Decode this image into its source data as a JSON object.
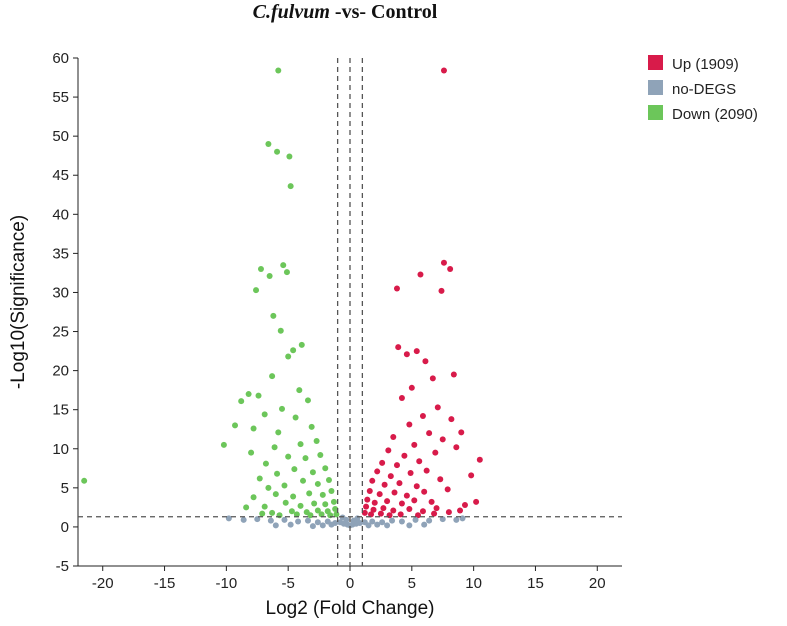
{
  "chart_data": {
    "type": "scatter",
    "title": {
      "italic": "C.fulvum",
      "rest": " -vs- Control"
    },
    "xlabel": "Log2 (Fold Change)",
    "ylabel": "-Log10(Significance)",
    "xlim": [
      -22,
      22
    ],
    "ylim": [
      -5,
      60
    ],
    "x_ticks": [
      -20,
      -15,
      -10,
      -5,
      0,
      5,
      10,
      15,
      20
    ],
    "y_ticks": [
      -5,
      0,
      5,
      10,
      15,
      20,
      25,
      30,
      35,
      40,
      45,
      50,
      55,
      60
    ],
    "threshold_lines": {
      "vertical": [
        -1,
        0,
        1
      ],
      "horizontal": [
        1.3
      ]
    },
    "legend_position": "top-right",
    "colors": {
      "up": "#d81b4a",
      "no": "#8fa3b8",
      "down": "#6cc65a",
      "guide": "#555555"
    },
    "series": [
      {
        "key": "up",
        "name": "Up (1909)",
        "points": [
          [
            7.6,
            58.4
          ],
          [
            7.6,
            33.8
          ],
          [
            8.1,
            33.0
          ],
          [
            3.8,
            30.5
          ],
          [
            7.4,
            30.2
          ],
          [
            5.7,
            32.3
          ],
          [
            4.6,
            22.1
          ],
          [
            5.4,
            22.5
          ],
          [
            6.1,
            21.2
          ],
          [
            3.9,
            23.0
          ],
          [
            8.4,
            19.5
          ],
          [
            10.5,
            8.6
          ],
          [
            9.8,
            6.6
          ],
          [
            10.2,
            3.2
          ],
          [
            9.3,
            2.8
          ],
          [
            8.9,
            2.1
          ],
          [
            7.9,
            4.8
          ],
          [
            8.6,
            10.2
          ],
          [
            9.0,
            12.1
          ],
          [
            6.7,
            19.0
          ],
          [
            5.0,
            17.8
          ],
          [
            4.2,
            16.5
          ],
          [
            7.1,
            15.3
          ],
          [
            5.9,
            14.2
          ],
          [
            4.8,
            13.1
          ],
          [
            6.4,
            12.0
          ],
          [
            3.5,
            11.5
          ],
          [
            8.2,
            13.8
          ],
          [
            7.5,
            11.2
          ],
          [
            5.2,
            10.5
          ],
          [
            3.1,
            9.8
          ],
          [
            4.4,
            9.1
          ],
          [
            6.9,
            9.5
          ],
          [
            2.6,
            8.2
          ],
          [
            3.8,
            7.9
          ],
          [
            5.6,
            8.4
          ],
          [
            2.2,
            7.1
          ],
          [
            3.3,
            6.5
          ],
          [
            4.9,
            6.9
          ],
          [
            6.2,
            7.2
          ],
          [
            1.8,
            5.9
          ],
          [
            2.8,
            5.4
          ],
          [
            4.0,
            5.6
          ],
          [
            5.4,
            5.2
          ],
          [
            7.3,
            6.1
          ],
          [
            1.6,
            4.6
          ],
          [
            2.4,
            4.2
          ],
          [
            3.6,
            4.4
          ],
          [
            4.6,
            4.0
          ],
          [
            6.0,
            4.5
          ],
          [
            1.4,
            3.5
          ],
          [
            2.0,
            3.1
          ],
          [
            3.0,
            3.3
          ],
          [
            4.2,
            3.0
          ],
          [
            5.2,
            3.4
          ],
          [
            6.6,
            3.2
          ],
          [
            1.3,
            2.6
          ],
          [
            1.9,
            2.2
          ],
          [
            2.7,
            2.4
          ],
          [
            3.5,
            2.1
          ],
          [
            4.8,
            2.3
          ],
          [
            5.9,
            2.0
          ],
          [
            7.0,
            2.4
          ],
          [
            1.2,
            1.8
          ],
          [
            1.7,
            1.6
          ],
          [
            2.5,
            1.7
          ],
          [
            3.2,
            1.5
          ],
          [
            4.1,
            1.6
          ],
          [
            5.5,
            1.5
          ],
          [
            6.8,
            1.7
          ],
          [
            8.0,
            1.9
          ]
        ]
      },
      {
        "key": "no",
        "name": "no-DEGS",
        "points": [
          [
            -9.8,
            1.1
          ],
          [
            -8.6,
            0.9
          ],
          [
            -7.5,
            1.0
          ],
          [
            -6.4,
            0.8
          ],
          [
            -5.3,
            0.9
          ],
          [
            -4.2,
            0.7
          ],
          [
            -3.4,
            0.8
          ],
          [
            -2.6,
            0.6
          ],
          [
            -1.8,
            0.7
          ],
          [
            -1.2,
            0.5
          ],
          [
            -0.8,
            0.6
          ],
          [
            -0.5,
            0.4
          ],
          [
            -0.2,
            0.3
          ],
          [
            0.0,
            0.2
          ],
          [
            0.2,
            0.3
          ],
          [
            0.5,
            0.4
          ],
          [
            0.8,
            0.5
          ],
          [
            1.2,
            0.6
          ],
          [
            1.8,
            0.7
          ],
          [
            2.6,
            0.6
          ],
          [
            3.4,
            0.8
          ],
          [
            4.2,
            0.7
          ],
          [
            5.3,
            0.9
          ],
          [
            6.4,
            0.8
          ],
          [
            7.5,
            1.0
          ],
          [
            8.6,
            0.9
          ],
          [
            9.1,
            1.1
          ],
          [
            -0.6,
            1.2
          ],
          [
            0.6,
            1.1
          ],
          [
            -0.3,
            0.9
          ],
          [
            0.3,
            0.8
          ],
          [
            -1.5,
            0.3
          ],
          [
            1.5,
            0.2
          ],
          [
            -2.2,
            0.2
          ],
          [
            2.2,
            0.3
          ],
          [
            -3.0,
            0.1
          ],
          [
            3.0,
            0.2
          ],
          [
            -4.8,
            0.3
          ],
          [
            4.8,
            0.2
          ],
          [
            -6.0,
            0.2
          ],
          [
            6.0,
            0.3
          ]
        ]
      },
      {
        "key": "down",
        "name": "Down (2090)",
        "points": [
          [
            -21.5,
            5.9
          ],
          [
            -5.8,
            58.4
          ],
          [
            -6.6,
            49.0
          ],
          [
            -5.9,
            48.0
          ],
          [
            -4.9,
            47.4
          ],
          [
            -4.8,
            43.6
          ],
          [
            -5.4,
            33.5
          ],
          [
            -6.5,
            32.1
          ],
          [
            -7.2,
            33.0
          ],
          [
            -5.1,
            32.6
          ],
          [
            -7.6,
            30.3
          ],
          [
            -6.2,
            27.0
          ],
          [
            -5.6,
            25.1
          ],
          [
            -3.9,
            23.3
          ],
          [
            -4.6,
            22.6
          ],
          [
            -5.0,
            21.8
          ],
          [
            -8.2,
            17.0
          ],
          [
            -8.8,
            16.1
          ],
          [
            -10.2,
            10.5
          ],
          [
            -9.3,
            13.0
          ],
          [
            -7.4,
            16.8
          ],
          [
            -6.3,
            19.3
          ],
          [
            -4.1,
            17.5
          ],
          [
            -3.4,
            16.2
          ],
          [
            -5.5,
            15.1
          ],
          [
            -6.9,
            14.4
          ],
          [
            -4.4,
            14.0
          ],
          [
            -7.8,
            12.6
          ],
          [
            -3.1,
            12.8
          ],
          [
            -5.8,
            12.1
          ],
          [
            -2.7,
            11.0
          ],
          [
            -4.0,
            10.6
          ],
          [
            -6.1,
            10.2
          ],
          [
            -8.0,
            9.5
          ],
          [
            -2.4,
            9.2
          ],
          [
            -3.6,
            8.8
          ],
          [
            -5.0,
            9.0
          ],
          [
            -6.8,
            8.1
          ],
          [
            -2.0,
            7.5
          ],
          [
            -3.0,
            7.0
          ],
          [
            -4.5,
            7.4
          ],
          [
            -5.9,
            6.8
          ],
          [
            -7.3,
            6.2
          ],
          [
            -1.7,
            6.0
          ],
          [
            -2.6,
            5.5
          ],
          [
            -3.8,
            5.9
          ],
          [
            -5.3,
            5.3
          ],
          [
            -6.6,
            5.0
          ],
          [
            -1.5,
            4.6
          ],
          [
            -2.2,
            4.1
          ],
          [
            -3.3,
            4.3
          ],
          [
            -4.6,
            3.9
          ],
          [
            -6.0,
            4.2
          ],
          [
            -7.8,
            3.8
          ],
          [
            -1.3,
            3.2
          ],
          [
            -2.0,
            2.9
          ],
          [
            -2.9,
            3.0
          ],
          [
            -4.0,
            2.7
          ],
          [
            -5.2,
            3.1
          ],
          [
            -6.9,
            2.6
          ],
          [
            -8.4,
            2.5
          ],
          [
            -1.2,
            2.3
          ],
          [
            -1.8,
            2.0
          ],
          [
            -2.6,
            2.1
          ],
          [
            -3.5,
            1.9
          ],
          [
            -4.7,
            2.0
          ],
          [
            -6.3,
            1.8
          ],
          [
            -1.1,
            1.6
          ],
          [
            -1.6,
            1.5
          ],
          [
            -2.3,
            1.6
          ],
          [
            -3.2,
            1.5
          ],
          [
            -4.3,
            1.6
          ],
          [
            -5.7,
            1.5
          ],
          [
            -7.1,
            1.7
          ]
        ]
      }
    ]
  }
}
